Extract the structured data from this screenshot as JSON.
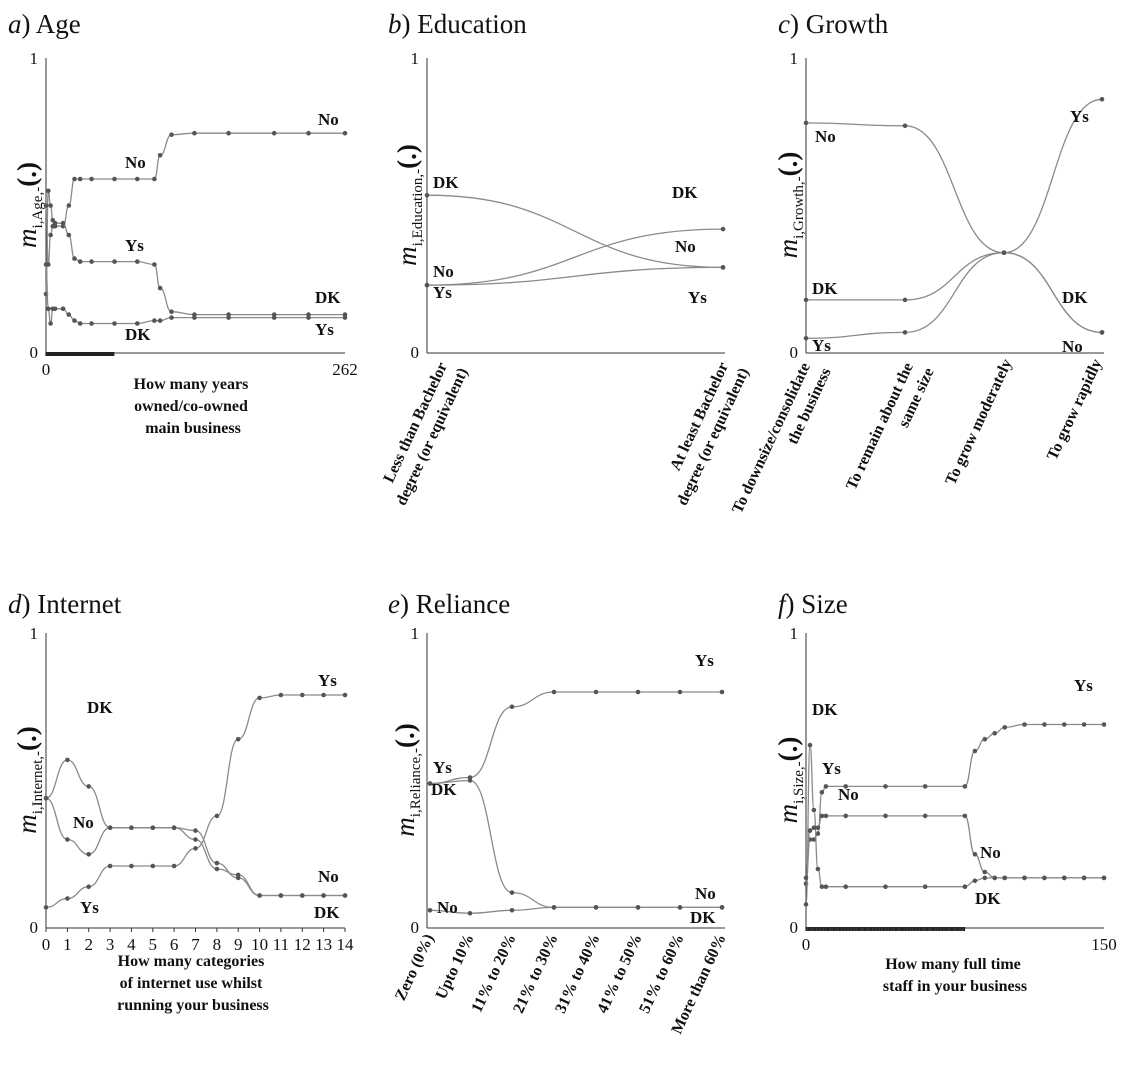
{
  "figure": {
    "panels": [
      {
        "id": "a",
        "title": "Age",
        "ylabel_sub": "i,Age,-",
        "xlabel": [
          "How many years",
          "owned/co-owned",
          "main business"
        ]
      },
      {
        "id": "b",
        "title": "Education",
        "ylabel_sub": "i,Education,-",
        "xlabel": []
      },
      {
        "id": "c",
        "title": "Growth",
        "ylabel_sub": "i,Growth,-",
        "xlabel": []
      },
      {
        "id": "d",
        "title": "Internet",
        "ylabel_sub": "i,Internet,-",
        "xlabel": [
          "How many categories",
          "of internet use whilst",
          "running your business"
        ]
      },
      {
        "id": "e",
        "title": "Reliance",
        "ylabel_sub": "i,Reliance,-",
        "xlabel": []
      },
      {
        "id": "f",
        "title": "Size",
        "ylabel_sub": "i,Size,-",
        "xlabel": [
          "How many full time",
          "staff in your business"
        ]
      }
    ],
    "ylabel_main": "m",
    "ylabel_end": "(.)"
  },
  "chart_data": [
    {
      "panel": "a",
      "type": "line",
      "title": "Age",
      "xlabel": "How many years owned/co-owned main business",
      "ylabel": "m_{i,Age,-}(.)",
      "xlim": [
        0,
        262
      ],
      "ylim": [
        0,
        1
      ],
      "xticks": [
        0,
        262
      ],
      "yticks": [
        0,
        1
      ],
      "series": [
        {
          "name": "No",
          "x": [
            0,
            2,
            4,
            6,
            8,
            15,
            20,
            25,
            30,
            40,
            60,
            80,
            95,
            100,
            110,
            130,
            160,
            200,
            230,
            262
          ],
          "y": [
            0.2,
            0.55,
            0.5,
            0.45,
            0.43,
            0.43,
            0.5,
            0.59,
            0.59,
            0.59,
            0.59,
            0.59,
            0.59,
            0.67,
            0.74,
            0.745,
            0.745,
            0.745,
            0.745,
            0.745
          ]
        },
        {
          "name": "Ys",
          "x": [
            0,
            2,
            4,
            6,
            8,
            15,
            20,
            25,
            30,
            40,
            60,
            80,
            95,
            100,
            110,
            130,
            160,
            200,
            230,
            262
          ],
          "y": [
            0.5,
            0.3,
            0.4,
            0.43,
            0.44,
            0.44,
            0.4,
            0.32,
            0.31,
            0.31,
            0.31,
            0.31,
            0.3,
            0.22,
            0.14,
            0.13,
            0.13,
            0.13,
            0.13,
            0.13
          ]
        },
        {
          "name": "DK",
          "x": [
            0,
            2,
            4,
            6,
            8,
            15,
            20,
            25,
            30,
            40,
            60,
            80,
            95,
            100,
            110,
            130,
            160,
            200,
            230,
            262
          ],
          "y": [
            0.3,
            0.15,
            0.1,
            0.15,
            0.15,
            0.15,
            0.13,
            0.11,
            0.1,
            0.1,
            0.1,
            0.1,
            0.11,
            0.11,
            0.12,
            0.12,
            0.12,
            0.12,
            0.12,
            0.12
          ]
        }
      ],
      "labels": [
        {
          "text": "No",
          "series": "No",
          "at": "middle"
        },
        {
          "text": "Ys",
          "series": "Ys",
          "at": "middle"
        },
        {
          "text": "DK",
          "series": "DK",
          "at": "middle"
        },
        {
          "text": "No",
          "series": "No",
          "at": "end"
        },
        {
          "text": "DK",
          "series": "DK",
          "at": "end"
        },
        {
          "text": "Ys",
          "series": "Ys",
          "at": "end"
        }
      ]
    },
    {
      "panel": "b",
      "type": "line",
      "title": "Education",
      "xlabel": "",
      "ylabel": "m_{i,Education,-}(.)",
      "ylim": [
        0,
        1
      ],
      "yticks": [
        0,
        1
      ],
      "categories": [
        "Less than Bachelor degree (or equivalent)",
        "At least Bachelor degree (or equivalent)"
      ],
      "series": [
        {
          "name": "DK",
          "values": [
            0.535,
            0.29
          ]
        },
        {
          "name": "No",
          "values": [
            0.23,
            0.42
          ]
        },
        {
          "name": "Ys",
          "values": [
            0.23,
            0.29
          ]
        }
      ],
      "labels": [
        {
          "text": "DK",
          "series": "DK",
          "at": "start"
        },
        {
          "text": "No",
          "series": "No",
          "at": "start"
        },
        {
          "text": "Ys",
          "series": "Ys",
          "at": "start"
        },
        {
          "text": "DK",
          "series": "DK",
          "at": "end"
        },
        {
          "text": "No",
          "series": "No",
          "at": "end"
        },
        {
          "text": "Ys",
          "series": "Ys",
          "at": "end"
        }
      ]
    },
    {
      "panel": "c",
      "type": "line",
      "title": "Growth",
      "xlabel": "",
      "ylabel": "m_{i,Growth,-}(.)",
      "ylim": [
        0,
        1
      ],
      "yticks": [
        0,
        1
      ],
      "categories": [
        "To downsize/consolidate the business",
        "To remain about the same size",
        "To grow moderately",
        "To grow rapidly"
      ],
      "series": [
        {
          "name": "No",
          "values": [
            0.78,
            0.77,
            0.34,
            0.07
          ]
        },
        {
          "name": "DK",
          "values": [
            0.18,
            0.18,
            0.34,
            0.07
          ]
        },
        {
          "name": "Ys",
          "values": [
            0.05,
            0.07,
            0.34,
            0.86
          ]
        }
      ],
      "labels": [
        {
          "text": "No",
          "series": "No",
          "at": "start"
        },
        {
          "text": "DK",
          "series": "DK",
          "at": "start"
        },
        {
          "text": "Ys",
          "series": "Ys",
          "at": "start"
        },
        {
          "text": "Ys",
          "series": "Ys",
          "at": "end"
        },
        {
          "text": "DK",
          "series": "DK",
          "at": "end"
        },
        {
          "text": "No",
          "series": "No",
          "at": "end"
        }
      ]
    },
    {
      "panel": "d",
      "type": "line",
      "title": "Internet",
      "xlabel": "How many categories of internet use whilst running your business",
      "ylabel": "m_{i,Internet,-}(.)",
      "xlim": [
        0,
        14
      ],
      "ylim": [
        0,
        1
      ],
      "xticks": [
        0,
        1,
        2,
        3,
        4,
        5,
        6,
        7,
        8,
        9,
        10,
        11,
        12,
        13,
        14
      ],
      "yticks": [
        0,
        1
      ],
      "series": [
        {
          "name": "DK",
          "x": [
            0,
            1,
            2,
            3,
            4,
            5,
            6,
            7,
            8,
            9,
            10,
            11,
            12,
            13,
            14
          ],
          "y": [
            0.44,
            0.57,
            0.48,
            0.34,
            0.34,
            0.34,
            0.34,
            0.3,
            0.2,
            0.18,
            0.11,
            0.11,
            0.11,
            0.11,
            0.11
          ]
        },
        {
          "name": "No",
          "x": [
            0,
            1,
            2,
            3,
            4,
            5,
            6,
            7,
            8,
            9,
            10,
            11,
            12,
            13,
            14
          ],
          "y": [
            0.44,
            0.3,
            0.25,
            0.34,
            0.34,
            0.34,
            0.34,
            0.33,
            0.22,
            0.17,
            0.11,
            0.11,
            0.11,
            0.11,
            0.11
          ]
        },
        {
          "name": "Ys",
          "x": [
            0,
            1,
            2,
            3,
            4,
            5,
            6,
            7,
            8,
            9,
            10,
            11,
            12,
            13,
            14
          ],
          "y": [
            0.07,
            0.1,
            0.14,
            0.21,
            0.21,
            0.21,
            0.21,
            0.27,
            0.38,
            0.64,
            0.78,
            0.79,
            0.79,
            0.79,
            0.79
          ]
        }
      ],
      "labels": [
        {
          "text": "DK",
          "series": "DK",
          "at": "peak"
        },
        {
          "text": "No",
          "series": "No",
          "at": "dip"
        },
        {
          "text": "Ys",
          "series": "Ys",
          "at": "start"
        },
        {
          "text": "Ys",
          "series": "Ys",
          "at": "end"
        },
        {
          "text": "No",
          "series": "No",
          "at": "end"
        },
        {
          "text": "DK",
          "series": "DK",
          "at": "end"
        }
      ]
    },
    {
      "panel": "e",
      "type": "line",
      "title": "Reliance",
      "xlabel": "",
      "ylabel": "m_{i,Reliance,-}(.)",
      "ylim": [
        0,
        1
      ],
      "yticks": [
        0,
        1
      ],
      "categories": [
        "Zero (0%)",
        "Upto 10%",
        "11% to 20%",
        "21% to 30%",
        "31% to 40%",
        "41% to 50%",
        "51% to 60%",
        "More than 60%"
      ],
      "series": [
        {
          "name": "Ys",
          "values": [
            0.49,
            0.51,
            0.75,
            0.8,
            0.8,
            0.8,
            0.8,
            0.8
          ]
        },
        {
          "name": "DK",
          "values": [
            0.49,
            0.5,
            0.12,
            0.07,
            0.07,
            0.07,
            0.07,
            0.07
          ]
        },
        {
          "name": "No",
          "values": [
            0.06,
            0.05,
            0.06,
            0.07,
            0.07,
            0.07,
            0.07,
            0.07
          ]
        }
      ],
      "labels": [
        {
          "text": "Ys",
          "series": "Ys",
          "at": "start"
        },
        {
          "text": "DK",
          "series": "DK",
          "at": "start"
        },
        {
          "text": "No",
          "series": "No",
          "at": "start"
        },
        {
          "text": "Ys",
          "series": "Ys",
          "at": "end"
        },
        {
          "text": "No",
          "series": "No",
          "at": "end"
        },
        {
          "text": "DK",
          "series": "DK",
          "at": "end"
        }
      ]
    },
    {
      "panel": "f",
      "type": "line",
      "title": "Size",
      "xlabel": "How many full time staff in your business",
      "ylabel": "m_{i,Size,-}(.)",
      "xlim": [
        0,
        150
      ],
      "ylim": [
        0,
        1
      ],
      "xticks": [
        0,
        150
      ],
      "yticks": [
        0,
        1
      ],
      "series": [
        {
          "name": "Ys",
          "x": [
            0,
            2,
            4,
            6,
            8,
            10,
            20,
            40,
            60,
            80,
            85,
            90,
            95,
            100,
            110,
            120,
            130,
            140,
            150
          ],
          "y": [
            0.15,
            0.3,
            0.3,
            0.32,
            0.46,
            0.48,
            0.48,
            0.48,
            0.48,
            0.48,
            0.6,
            0.64,
            0.66,
            0.68,
            0.69,
            0.69,
            0.69,
            0.69,
            0.69
          ]
        },
        {
          "name": "DK",
          "x": [
            0,
            2,
            4,
            6,
            8,
            10,
            20,
            40,
            60,
            80,
            85,
            90,
            95,
            100,
            110,
            120,
            130,
            140,
            150
          ],
          "y": [
            0.08,
            0.62,
            0.4,
            0.2,
            0.14,
            0.14,
            0.14,
            0.14,
            0.14,
            0.14,
            0.16,
            0.17,
            0.17,
            0.17,
            0.17,
            0.17,
            0.17,
            0.17,
            0.17
          ]
        },
        {
          "name": "No",
          "x": [
            0,
            2,
            4,
            6,
            8,
            10,
            20,
            40,
            60,
            80,
            85,
            90,
            95,
            100,
            110,
            120,
            130,
            140,
            150
          ],
          "y": [
            0.17,
            0.33,
            0.34,
            0.34,
            0.38,
            0.38,
            0.38,
            0.38,
            0.38,
            0.38,
            0.25,
            0.19,
            0.17,
            0.17,
            0.17,
            0.17,
            0.17,
            0.17,
            0.17
          ]
        }
      ],
      "labels": [
        {
          "text": "DK",
          "series": "DK",
          "at": "peak"
        },
        {
          "text": "Ys",
          "series": "Ys",
          "at": "middle"
        },
        {
          "text": "No",
          "series": "No",
          "at": "middle"
        },
        {
          "text": "Ys",
          "series": "Ys",
          "at": "end"
        },
        {
          "text": "No",
          "series": "No",
          "at": "end"
        },
        {
          "text": "DK",
          "series": "DK",
          "at": "end"
        }
      ]
    }
  ]
}
